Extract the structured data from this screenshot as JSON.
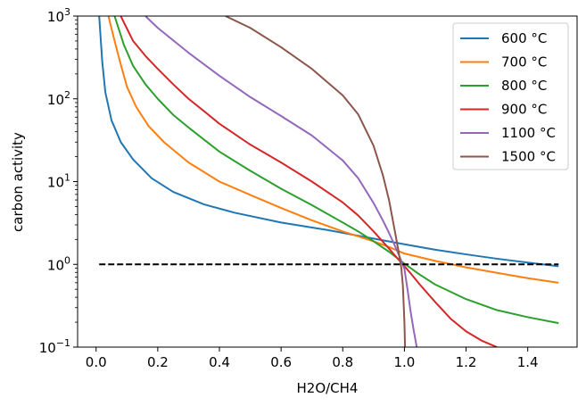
{
  "chart_data": {
    "type": "line",
    "title": "",
    "xlabel": "H2O/CH4",
    "ylabel": "carbon activity",
    "yscale": "log",
    "xlim": [
      -0.06,
      1.56
    ],
    "ylim": [
      0.1,
      1000
    ],
    "grid": false,
    "legend_position": "top-right",
    "x_ticks": [
      {
        "value": 0.0,
        "label": "0.0"
      },
      {
        "value": 0.2,
        "label": "0.2"
      },
      {
        "value": 0.4,
        "label": "0.4"
      },
      {
        "value": 0.6,
        "label": "0.6"
      },
      {
        "value": 0.8,
        "label": "0.8"
      },
      {
        "value": 1.0,
        "label": "1.0"
      },
      {
        "value": 1.2,
        "label": "1.2"
      },
      {
        "value": 1.4,
        "label": "1.4"
      }
    ],
    "y_ticks": [
      {
        "value": 0.1,
        "base": "10",
        "exp": "−1"
      },
      {
        "value": 1,
        "base": "10",
        "exp": "0"
      },
      {
        "value": 10,
        "base": "10",
        "exp": "1"
      },
      {
        "value": 100,
        "base": "10",
        "exp": "2"
      },
      {
        "value": 1000,
        "base": "10",
        "exp": "3"
      }
    ],
    "series": [
      {
        "name": "600 °C",
        "color": "#1f77b4",
        "x": [
          0.01,
          0.02,
          0.03,
          0.05,
          0.08,
          0.12,
          0.18,
          0.25,
          0.35,
          0.45,
          0.6,
          0.75,
          0.9,
          1.0,
          1.1,
          1.2,
          1.3,
          1.4,
          1.5
        ],
        "y": [
          1000,
          280,
          120,
          55,
          30,
          18.5,
          11,
          7.5,
          5.3,
          4.2,
          3.2,
          2.6,
          2.05,
          1.75,
          1.5,
          1.32,
          1.17,
          1.05,
          0.95
        ]
      },
      {
        "name": "700 °C",
        "color": "#ff7f0e",
        "x": [
          0.04,
          0.06,
          0.08,
          0.1,
          0.13,
          0.17,
          0.22,
          0.3,
          0.4,
          0.5,
          0.6,
          0.7,
          0.8,
          0.9,
          0.95,
          1.0,
          1.1,
          1.2,
          1.3,
          1.4,
          1.5
        ],
        "y": [
          1000,
          500,
          260,
          140,
          80,
          47,
          30,
          17,
          10,
          6.9,
          4.8,
          3.4,
          2.5,
          1.9,
          1.62,
          1.35,
          1.1,
          0.92,
          0.79,
          0.68,
          0.6
        ]
      },
      {
        "name": "800 °C",
        "color": "#2ca02c",
        "x": [
          0.06,
          0.09,
          0.12,
          0.16,
          0.2,
          0.25,
          0.3,
          0.4,
          0.5,
          0.6,
          0.7,
          0.8,
          0.85,
          0.9,
          0.95,
          1.0,
          1.05,
          1.1,
          1.2,
          1.3,
          1.4,
          1.5
        ],
        "y": [
          1000,
          450,
          250,
          150,
          100,
          64,
          45,
          23,
          13.5,
          8.2,
          5.2,
          3.2,
          2.5,
          1.9,
          1.42,
          1.02,
          0.75,
          0.57,
          0.38,
          0.28,
          0.23,
          0.195
        ]
      },
      {
        "name": "900 °C",
        "color": "#d62728",
        "x": [
          0.08,
          0.12,
          0.16,
          0.2,
          0.25,
          0.3,
          0.35,
          0.4,
          0.5,
          0.6,
          0.7,
          0.8,
          0.85,
          0.9,
          0.95,
          0.98,
          1.0,
          1.02,
          1.05,
          1.1,
          1.15,
          1.2,
          1.25,
          1.3
        ],
        "y": [
          1000,
          500,
          330,
          230,
          150,
          100,
          71,
          50,
          28,
          17,
          10,
          5.6,
          3.9,
          2.5,
          1.55,
          1.15,
          0.95,
          0.78,
          0.57,
          0.35,
          0.22,
          0.155,
          0.12,
          0.1
        ]
      },
      {
        "name": "1100 °C",
        "color": "#9467bd",
        "x": [
          0.16,
          0.2,
          0.3,
          0.4,
          0.5,
          0.6,
          0.7,
          0.8,
          0.85,
          0.9,
          0.93,
          0.95,
          0.97,
          0.98,
          0.99,
          1.0,
          1.01,
          1.02,
          1.03,
          1.04
        ],
        "y": [
          1000,
          720,
          360,
          190,
          105,
          62,
          36,
          18,
          11,
          5.5,
          3.4,
          2.4,
          1.65,
          1.35,
          1.1,
          0.88,
          0.5,
          0.27,
          0.16,
          0.1
        ]
      },
      {
        "name": "1500 °C",
        "color": "#8c564b",
        "x": [
          0.42,
          0.5,
          0.6,
          0.7,
          0.8,
          0.85,
          0.9,
          0.93,
          0.95,
          0.97,
          0.98,
          0.99,
          0.995,
          1.0,
          1.002
        ],
        "y": [
          1000,
          720,
          420,
          230,
          110,
          65,
          27,
          12,
          6,
          2.4,
          1.5,
          0.9,
          0.55,
          0.2,
          0.1
        ]
      },
      {
        "name": "",
        "color": "#000000",
        "dashed": true,
        "in_legend": false,
        "x": [
          0.01,
          1.5
        ],
        "y": [
          1,
          1
        ]
      }
    ]
  }
}
